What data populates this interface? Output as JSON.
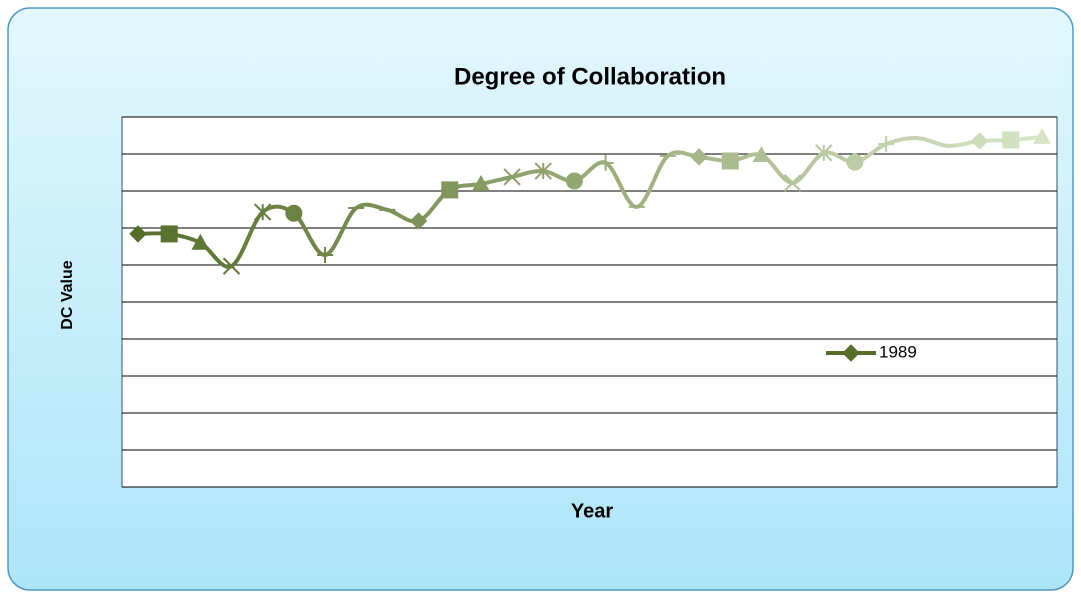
{
  "chart_data": {
    "type": "line",
    "title": "Degree of Collaboration",
    "x_label": "Year",
    "y_label": "DC Value",
    "categories": [
      null,
      null,
      null,
      null,
      null,
      null,
      null,
      null,
      null,
      null,
      null,
      null,
      null,
      null,
      null,
      null,
      null,
      null,
      null,
      null,
      null,
      null,
      null,
      null,
      null,
      null,
      null,
      null,
      null,
      null
    ],
    "series": [
      {
        "name": "1989",
        "color": "#546e28",
        "values": [
          6.84,
          6.84,
          6.6,
          5.97,
          7.43,
          7.4,
          6.27,
          7.54,
          7.49,
          7.19,
          8.03,
          8.19,
          8.38,
          8.54,
          8.27,
          8.76,
          7.57,
          8.95,
          8.92,
          8.81,
          8.97,
          8.22,
          9.03,
          8.78,
          9.27,
          9.43,
          9.22,
          9.35,
          9.38,
          9.46
        ],
        "point_colors": [
          "#546e28",
          "#59722d",
          "#5d7633",
          "#627a38",
          "#667e3e",
          "#6b8243",
          "#6f8648",
          "#748a4e",
          "#788f53",
          "#7d9358",
          "#81975e",
          "#869b63",
          "#8a9f69",
          "#8fa36e",
          "#93a773",
          "#98ab79",
          "#9caf7e",
          "#a1b383",
          "#a5b789",
          "#aabb8e",
          "#aebf94",
          "#b3c399",
          "#b7c89e",
          "#bccca4",
          "#c0d0a9",
          "#c5d4af",
          "#c9d8b4",
          "#cedcb9",
          "#d2e0bf",
          "#d7e4c4"
        ]
      }
    ],
    "markers": [
      "diamond",
      "square",
      "triangle",
      "x",
      "star",
      "circle",
      "plus",
      "dash",
      "dash"
    ],
    "smooth": true,
    "ylim": [
      0,
      10
    ],
    "yticks": [
      0,
      1,
      2,
      3,
      4,
      5,
      6,
      7,
      8,
      9,
      10
    ],
    "grid": true,
    "legend": "inside-right"
  }
}
